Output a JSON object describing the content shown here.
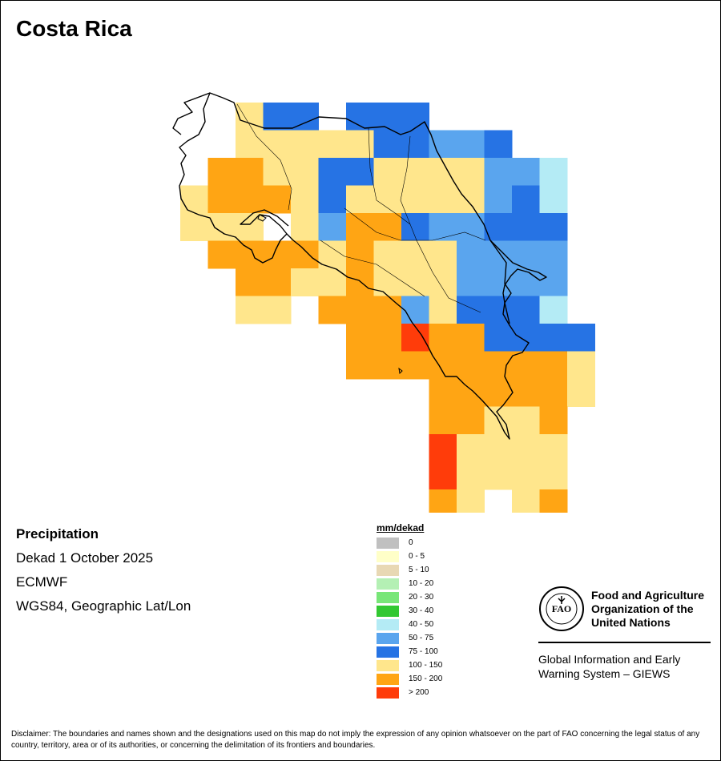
{
  "title": "Costa Rica",
  "info": {
    "variable": "Precipitation",
    "period": "Dekad 1 October 2025",
    "source": "ECMWF",
    "projection": "WGS84, Geographic Lat/Lon"
  },
  "legend": {
    "title": "mm/dekad",
    "classes": [
      {
        "label": "0",
        "color": "#c0c0c0"
      },
      {
        "label": "0 - 5",
        "color": "#ffffc8"
      },
      {
        "label": "5 - 10",
        "color": "#e8d8b4"
      },
      {
        "label": "10 - 20",
        "color": "#b4f0b4"
      },
      {
        "label": "20 - 30",
        "color": "#78e678"
      },
      {
        "label": "30 - 40",
        "color": "#32c832"
      },
      {
        "label": "40 - 50",
        "color": "#b4ebf5"
      },
      {
        "label": "50 - 75",
        "color": "#5aa5ee"
      },
      {
        "label": "75 - 100",
        "color": "#2673e4"
      },
      {
        "label": "100 - 150",
        "color": "#ffe68c"
      },
      {
        "label": "150 - 200",
        "color": "#ffa514"
      },
      {
        "label": "> 200",
        "color": "#ff3c0a"
      }
    ]
  },
  "branding": {
    "logo_text": "FAO",
    "logo_ring_text": "FIAT PANIS",
    "org_name_line1": "Food and Agriculture",
    "org_name_line2": "Organization of the",
    "org_name_line3": "United Nations",
    "system_line1": "Global Information and Early",
    "system_line2": "Warning System – GIEWS"
  },
  "disclaimer": "Disclaimer: The boundaries and names shown and the designations used on this map do not imply the expression of any opinion whatsoever on the part of FAO concerning the legal status of any country, territory, area or of its authorities, or concerning the delimitation of its frontiers and boundaries.",
  "map_data": {
    "grid_rows": [
      "4CCCCCC",
      "3BB9CC9DDD",
      "2ADCCCCBDCCCEE",
      "1AE9ADCACDDDCAE",
      "1ECDDACCDDADAA",
      "2AADCAABCACDDDDD",
      "5CCAAA",
      "8CCCCCDC",
      "9BB",
      "10DDCCDDDCCC",
      "11DDE",
      "13DDCC",
      "14DCCDC",
      "16DCDCC"
    ]
  }
}
